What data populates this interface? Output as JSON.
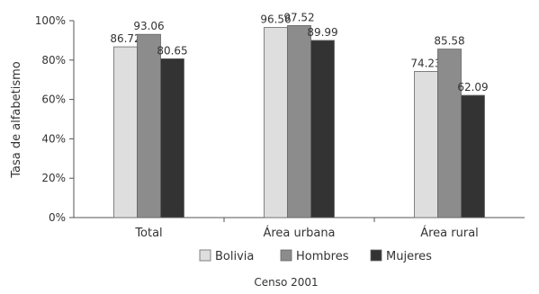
{
  "chart_data": {
    "type": "bar",
    "ylabel": "Tasa de alfabetismo",
    "xlabel": "",
    "caption": "Censo 2001",
    "categories": [
      "Total",
      "Área urbana",
      "Área rural"
    ],
    "ylim": [
      0,
      100
    ],
    "yticks": [
      0,
      20,
      40,
      60,
      80,
      100
    ],
    "ytick_labels": [
      "0%",
      "20%",
      "40%",
      "60%",
      "80%",
      "100%"
    ],
    "grid": false,
    "legend": "bottom",
    "series": [
      {
        "name": "Bolivia",
        "values": [
          86.72,
          96.56,
          74.23
        ],
        "value_labels": [
          "86.72",
          "96.56",
          "74.23"
        ],
        "color": "#dedede"
      },
      {
        "name": "Hombres",
        "values": [
          93.06,
          97.52,
          85.58
        ],
        "value_labels": [
          "93.06",
          "97.52",
          "85.58"
        ],
        "color": "#8c8c8c"
      },
      {
        "name": "Mujeres",
        "values": [
          80.65,
          89.99,
          62.09
        ],
        "value_labels": [
          "80.65",
          "89.99",
          "62.09"
        ],
        "color": "#333333"
      }
    ]
  }
}
